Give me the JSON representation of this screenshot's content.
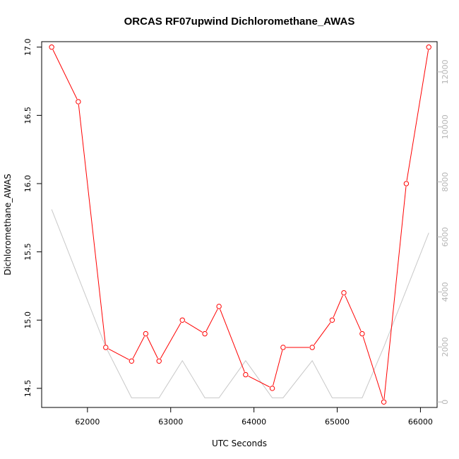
{
  "chart_data": {
    "type": "line",
    "title": "ORCAS RF07upwind Dichloromethane_AWAS",
    "xlabel": "UTC Seconds",
    "ylabel": "Dichloromethane_AWAS",
    "xlim": [
      61450,
      66200
    ],
    "ylim": [
      14.36,
      17.04
    ],
    "y2lim": [
      -200,
      13100
    ],
    "x_ticks": [
      "62000",
      "63000",
      "64000",
      "65000",
      "66000"
    ],
    "y_ticks": [
      "14.5",
      "15.0",
      "15.5",
      "16.0",
      "16.5",
      "17.0"
    ],
    "y2_ticks": [
      "0",
      "2000",
      "4000",
      "6000",
      "8000",
      "10000",
      "12000"
    ],
    "grid": false,
    "colors": {
      "primary": "#ff0000",
      "secondary": "#c8c8c8",
      "secondary_axis": "#b5b5b5"
    },
    "series": [
      {
        "axis": "left",
        "style": "line+points",
        "x": [
          61570,
          61890,
          62220,
          62530,
          62700,
          62860,
          63140,
          63410,
          63580,
          63900,
          64220,
          64350,
          64700,
          64940,
          65080,
          65300,
          65560,
          65830,
          66100
        ],
        "y": [
          17.0,
          16.6,
          14.8,
          14.7,
          14.9,
          14.7,
          15.0,
          14.9,
          15.1,
          14.6,
          14.5,
          14.8,
          14.8,
          15.0,
          15.2,
          14.9,
          14.4,
          16.0,
          17.0
        ]
      },
      {
        "axis": "right",
        "style": "line",
        "x": [
          61570,
          62220,
          62530,
          62860,
          63140,
          63410,
          63580,
          63900,
          64220,
          64350,
          64700,
          64940,
          65300,
          65560,
          66100
        ],
        "y": [
          7000,
          2000,
          150,
          150,
          1500,
          150,
          150,
          1500,
          150,
          150,
          1500,
          150,
          150,
          2000,
          6150
        ]
      }
    ]
  }
}
